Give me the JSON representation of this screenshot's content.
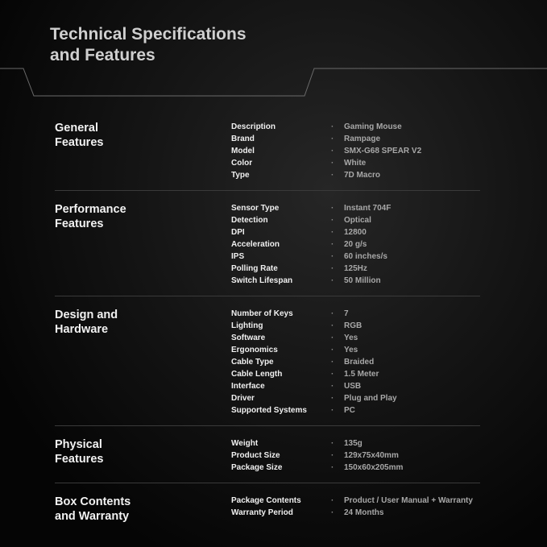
{
  "title": "Technical Specifications\nand Features",
  "colors": {
    "background": "#0a0a0a",
    "heading": "#cfcfcf",
    "label": "#f0f0f0",
    "value": "#a8a8a8"
  },
  "sections": [
    {
      "title": "General\nFeatures",
      "rows": [
        [
          "Description",
          "Gaming Mouse"
        ],
        [
          "Brand",
          "Rampage"
        ],
        [
          "Model",
          "SMX-G68 SPEAR V2"
        ],
        [
          "Color",
          "White"
        ],
        [
          "Type",
          "7D Macro"
        ]
      ]
    },
    {
      "title": "Performance\nFeatures",
      "rows": [
        [
          "Sensor Type",
          "Instant 704F"
        ],
        [
          "Detection",
          "Optical"
        ],
        [
          "DPI",
          "12800"
        ],
        [
          "Acceleration",
          "20 g/s"
        ],
        [
          "IPS",
          "60 inches/s"
        ],
        [
          "Polling Rate",
          "125Hz"
        ],
        [
          "Switch Lifespan",
          "50 Million"
        ]
      ]
    },
    {
      "title": "Design and\nHardware",
      "rows": [
        [
          "Number of Keys",
          "7"
        ],
        [
          "Lighting",
          "RGB"
        ],
        [
          "Software",
          "Yes"
        ],
        [
          "Ergonomics",
          "Yes"
        ],
        [
          "Cable Type",
          "Braided"
        ],
        [
          "Cable Length",
          "1.5 Meter"
        ],
        [
          "Interface",
          "USB"
        ],
        [
          "Driver",
          "Plug and Play"
        ],
        [
          "Supported Systems",
          "PC"
        ]
      ]
    },
    {
      "title": "Physical\nFeatures",
      "rows": [
        [
          "Weight",
          "135g"
        ],
        [
          "Product Size",
          "129x75x40mm"
        ],
        [
          "Package Size",
          "150x60x205mm"
        ]
      ]
    },
    {
      "title": "Box Contents\nand Warranty",
      "rows": [
        [
          "Package Contents",
          "Product / User Manual + Warranty"
        ],
        [
          "Warranty Period",
          "24 Months"
        ]
      ]
    }
  ],
  "separator": "·"
}
